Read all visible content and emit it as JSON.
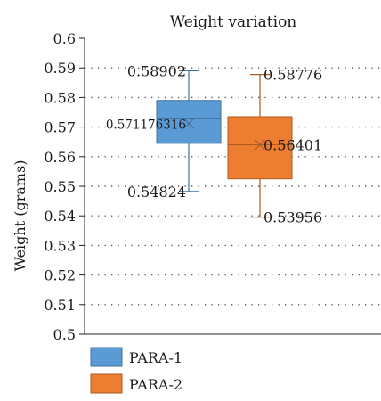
{
  "chart_data": {
    "type": "boxplot",
    "title": "Weight variation",
    "xlabel": "",
    "ylabel": "Weight (grams)",
    "ylim": [
      0.5,
      0.6
    ],
    "yticks": [
      "0.5",
      "0.51",
      "0.52",
      "0.53",
      "0.54",
      "0.55",
      "0.56",
      "0.57",
      "0.58",
      "0.59",
      "0.6"
    ],
    "grid": "dotted-horizontal",
    "legend_position": "bottom-left",
    "series": [
      {
        "name": "PARA-1",
        "color": "#5b9bd5",
        "min": 0.54824,
        "q1": 0.5645,
        "median": 0.573,
        "q3": 0.579,
        "max": 0.58902,
        "mean": 0.571176316
      },
      {
        "name": "PARA-2",
        "color": "#ed7d31",
        "min": 0.53956,
        "q1": 0.5525,
        "median": 0.564,
        "q3": 0.5735,
        "max": 0.58776,
        "mean": 0.56401
      }
    ],
    "annotations": [
      {
        "text": "0.58902",
        "series": 0,
        "value": 0.58902
      },
      {
        "text": "0.571176316",
        "series": 0,
        "value": 0.571176316
      },
      {
        "text": "0.54824",
        "series": 0,
        "value": 0.54824
      },
      {
        "text": "0.58776",
        "series": 1,
        "value": 0.58776
      },
      {
        "text": "0.56401",
        "series": 1,
        "value": 0.56401
      },
      {
        "text": "0.53956",
        "series": 1,
        "value": 0.53956
      }
    ]
  }
}
